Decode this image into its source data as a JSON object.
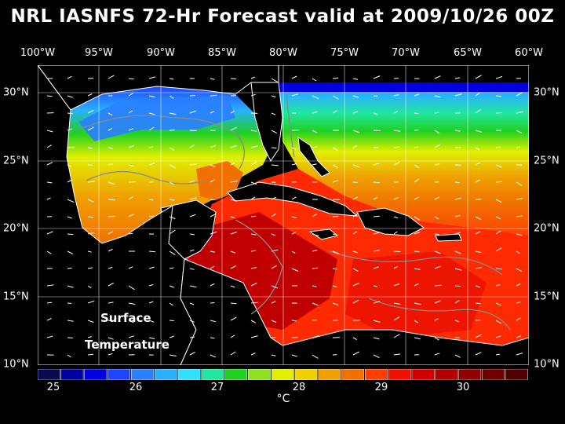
{
  "title": "NRL IASNFS  72-Hr Forecast valid at 2009/10/26 00Z",
  "lon_labels": [
    "100°W",
    "95°W",
    "90°W",
    "85°W",
    "80°W",
    "75°W",
    "70°W",
    "65°W",
    "60°W"
  ],
  "lat_labels": [
    "30°N",
    "25°N",
    "20°N",
    "15°N",
    "10°N"
  ],
  "map_labels": {
    "line1": "Surface",
    "line2": "Temperature"
  },
  "colorbar": {
    "ticks": [
      "25",
      "26",
      "27",
      "28",
      "29",
      "30"
    ],
    "unit": "°C",
    "colors": [
      "#0a0a50",
      "#0000a0",
      "#0000e0",
      "#1e46ff",
      "#2a80ff",
      "#2ab0ff",
      "#30e0ff",
      "#20e6a0",
      "#20d020",
      "#90e020",
      "#e0f000",
      "#f0d000",
      "#f0a000",
      "#f07000",
      "#ff4000",
      "#f01000",
      "#d00000",
      "#b00000",
      "#900000",
      "#700000",
      "#500000"
    ]
  },
  "colors": {
    "land": "#000000",
    "coast": "#ffffff",
    "depth_contour": "#8a8a8a",
    "grid": "#ffffff"
  }
}
